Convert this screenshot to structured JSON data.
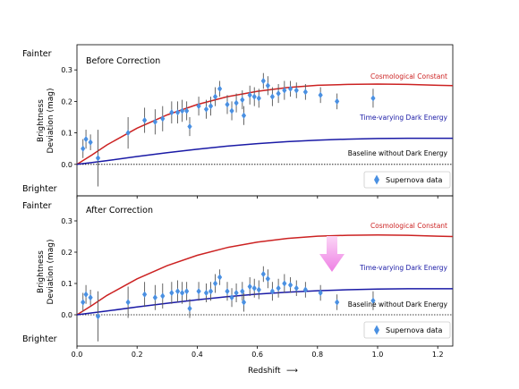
{
  "chart_data": {
    "type": "scatter",
    "side_labels": {
      "fainter": "Fainter",
      "brighter": "Brighter"
    },
    "ylabel_line1": "Brightness",
    "ylabel_line2": "Deviation (mag)",
    "xlabel": "Redshift",
    "xlabel_arrow": "⟶",
    "xlim": [
      0.0,
      1.25
    ],
    "ylim": [
      -0.1,
      0.38
    ],
    "xticks": [
      "0.0",
      "0.2",
      "0.4",
      "0.6",
      "0.8",
      "1.0",
      "1.2"
    ],
    "yticks": [
      "0.0",
      "0.1",
      "0.2",
      "0.3"
    ],
    "xtick_values": [
      0.0,
      0.2,
      0.4,
      0.6,
      0.8,
      1.0,
      1.2
    ],
    "ytick_values": [
      0.0,
      0.1,
      0.2,
      0.3
    ],
    "colors": {
      "cosmological": "#cc2222",
      "dark_energy": "#1a1aa6",
      "points": "#4a90e2",
      "errorbars": "#555555",
      "arrow": "#f08ee8"
    },
    "curve_labels": {
      "cosmological": "Cosmological Constant",
      "dark_energy": "Time-varying Dark Energy",
      "baseline": "Baseline without Dark Energy"
    },
    "legend_label": "Supernova data",
    "panels": [
      {
        "title": "Before Correction",
        "points": [
          {
            "x": 0.02,
            "y": 0.05,
            "err": 0.03
          },
          {
            "x": 0.03,
            "y": 0.08,
            "err": 0.03
          },
          {
            "x": 0.045,
            "y": 0.07,
            "err": 0.025
          },
          {
            "x": 0.07,
            "y": 0.02,
            "err": 0.09
          },
          {
            "x": 0.17,
            "y": 0.1,
            "err": 0.05
          },
          {
            "x": 0.225,
            "y": 0.14,
            "err": 0.04
          },
          {
            "x": 0.26,
            "y": 0.135,
            "err": 0.04
          },
          {
            "x": 0.285,
            "y": 0.145,
            "err": 0.04
          },
          {
            "x": 0.315,
            "y": 0.165,
            "err": 0.035
          },
          {
            "x": 0.335,
            "y": 0.165,
            "err": 0.035
          },
          {
            "x": 0.35,
            "y": 0.17,
            "err": 0.035
          },
          {
            "x": 0.365,
            "y": 0.17,
            "err": 0.03
          },
          {
            "x": 0.375,
            "y": 0.12,
            "err": 0.03
          },
          {
            "x": 0.405,
            "y": 0.185,
            "err": 0.03
          },
          {
            "x": 0.43,
            "y": 0.175,
            "err": 0.03
          },
          {
            "x": 0.445,
            "y": 0.185,
            "err": 0.03
          },
          {
            "x": 0.46,
            "y": 0.215,
            "err": 0.03
          },
          {
            "x": 0.475,
            "y": 0.24,
            "err": 0.025
          },
          {
            "x": 0.5,
            "y": 0.19,
            "err": 0.03
          },
          {
            "x": 0.515,
            "y": 0.17,
            "err": 0.03
          },
          {
            "x": 0.53,
            "y": 0.195,
            "err": 0.03
          },
          {
            "x": 0.55,
            "y": 0.205,
            "err": 0.03
          },
          {
            "x": 0.555,
            "y": 0.155,
            "err": 0.03
          },
          {
            "x": 0.575,
            "y": 0.22,
            "err": 0.03
          },
          {
            "x": 0.59,
            "y": 0.215,
            "err": 0.03
          },
          {
            "x": 0.605,
            "y": 0.21,
            "err": 0.03
          },
          {
            "x": 0.62,
            "y": 0.265,
            "err": 0.025
          },
          {
            "x": 0.635,
            "y": 0.25,
            "err": 0.03
          },
          {
            "x": 0.65,
            "y": 0.215,
            "err": 0.03
          },
          {
            "x": 0.67,
            "y": 0.225,
            "err": 0.03
          },
          {
            "x": 0.69,
            "y": 0.235,
            "err": 0.03
          },
          {
            "x": 0.71,
            "y": 0.24,
            "err": 0.025
          },
          {
            "x": 0.73,
            "y": 0.235,
            "err": 0.025
          },
          {
            "x": 0.76,
            "y": 0.23,
            "err": 0.025
          },
          {
            "x": 0.81,
            "y": 0.22,
            "err": 0.025
          },
          {
            "x": 0.865,
            "y": 0.2,
            "err": 0.025
          },
          {
            "x": 0.985,
            "y": 0.21,
            "err": 0.03
          }
        ]
      },
      {
        "title": "After Correction",
        "points": [
          {
            "x": 0.02,
            "y": 0.04,
            "err": 0.03
          },
          {
            "x": 0.03,
            "y": 0.065,
            "err": 0.03
          },
          {
            "x": 0.045,
            "y": 0.055,
            "err": 0.025
          },
          {
            "x": 0.07,
            "y": -0.005,
            "err": 0.08
          },
          {
            "x": 0.17,
            "y": 0.04,
            "err": 0.05
          },
          {
            "x": 0.225,
            "y": 0.065,
            "err": 0.04
          },
          {
            "x": 0.26,
            "y": 0.055,
            "err": 0.04
          },
          {
            "x": 0.285,
            "y": 0.06,
            "err": 0.04
          },
          {
            "x": 0.315,
            "y": 0.07,
            "err": 0.035
          },
          {
            "x": 0.335,
            "y": 0.075,
            "err": 0.035
          },
          {
            "x": 0.35,
            "y": 0.07,
            "err": 0.035
          },
          {
            "x": 0.365,
            "y": 0.075,
            "err": 0.03
          },
          {
            "x": 0.375,
            "y": 0.02,
            "err": 0.03
          },
          {
            "x": 0.405,
            "y": 0.075,
            "err": 0.03
          },
          {
            "x": 0.43,
            "y": 0.07,
            "err": 0.03
          },
          {
            "x": 0.445,
            "y": 0.075,
            "err": 0.03
          },
          {
            "x": 0.46,
            "y": 0.1,
            "err": 0.03
          },
          {
            "x": 0.475,
            "y": 0.12,
            "err": 0.025
          },
          {
            "x": 0.5,
            "y": 0.075,
            "err": 0.03
          },
          {
            "x": 0.515,
            "y": 0.055,
            "err": 0.03
          },
          {
            "x": 0.53,
            "y": 0.07,
            "err": 0.03
          },
          {
            "x": 0.55,
            "y": 0.075,
            "err": 0.03
          },
          {
            "x": 0.555,
            "y": 0.04,
            "err": 0.03
          },
          {
            "x": 0.575,
            "y": 0.09,
            "err": 0.03
          },
          {
            "x": 0.59,
            "y": 0.085,
            "err": 0.03
          },
          {
            "x": 0.605,
            "y": 0.08,
            "err": 0.03
          },
          {
            "x": 0.62,
            "y": 0.13,
            "err": 0.025
          },
          {
            "x": 0.635,
            "y": 0.115,
            "err": 0.03
          },
          {
            "x": 0.65,
            "y": 0.075,
            "err": 0.03
          },
          {
            "x": 0.67,
            "y": 0.085,
            "err": 0.03
          },
          {
            "x": 0.69,
            "y": 0.1,
            "err": 0.03
          },
          {
            "x": 0.71,
            "y": 0.095,
            "err": 0.025
          },
          {
            "x": 0.73,
            "y": 0.085,
            "err": 0.025
          },
          {
            "x": 0.76,
            "y": 0.08,
            "err": 0.025
          },
          {
            "x": 0.81,
            "y": 0.07,
            "err": 0.025
          },
          {
            "x": 0.865,
            "y": 0.04,
            "err": 0.025
          },
          {
            "x": 0.985,
            "y": 0.045,
            "err": 0.03
          }
        ]
      }
    ],
    "curves": {
      "cosmological": {
        "x": [
          0,
          0.05,
          0.1,
          0.2,
          0.3,
          0.4,
          0.5,
          0.6,
          0.7,
          0.8,
          0.9,
          1.0,
          1.1,
          1.2,
          1.25
        ],
        "y": [
          0,
          0.03,
          0.062,
          0.115,
          0.157,
          0.19,
          0.215,
          0.232,
          0.244,
          0.251,
          0.254,
          0.255,
          0.254,
          0.251,
          0.25
        ]
      },
      "dark_energy": {
        "x": [
          0,
          0.05,
          0.1,
          0.2,
          0.3,
          0.4,
          0.5,
          0.6,
          0.7,
          0.8,
          0.9,
          1.0,
          1.1,
          1.2,
          1.25
        ],
        "y": [
          0,
          0.006,
          0.012,
          0.025,
          0.037,
          0.048,
          0.058,
          0.066,
          0.072,
          0.077,
          0.08,
          0.082,
          0.083,
          0.083,
          0.083
        ]
      },
      "baseline": {
        "x": [
          0,
          1.25
        ],
        "y": [
          0,
          0
        ]
      }
    }
  }
}
